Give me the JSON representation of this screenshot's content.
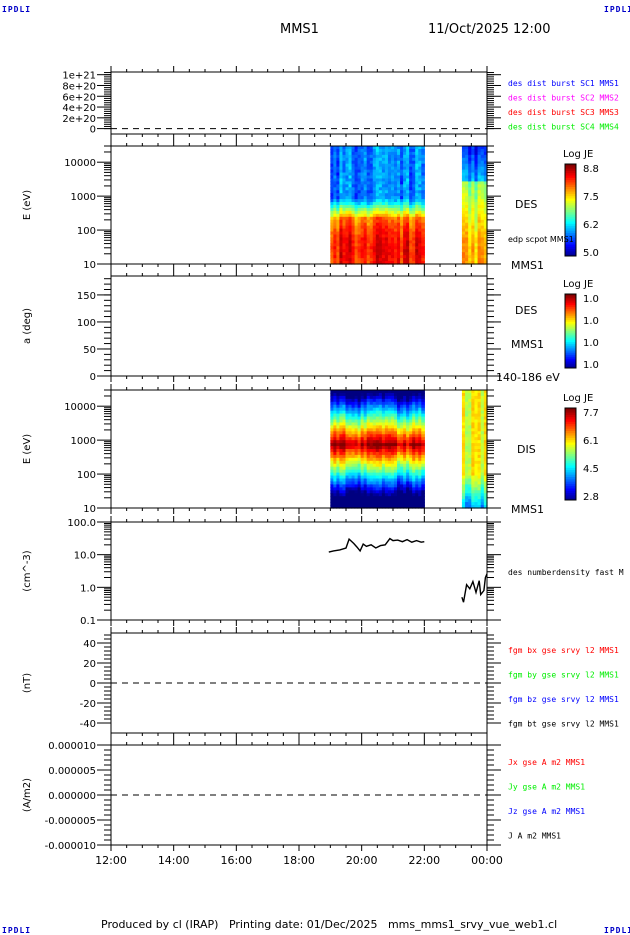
{
  "header": {
    "corner_label": "IPDLI",
    "spacecraft": "MMS1",
    "datetime": "11/Oct/2025 12:00"
  },
  "footer": {
    "text": "Produced by cl (IRAP)   Printing date: 01/Dec/2025   mms_mms1_srvy_vue_web1.cl"
  },
  "colors": {
    "blue": "#0000ff",
    "magenta": "#ff00ff",
    "red": "#ff0000",
    "green": "#00ee00",
    "black": "#000000"
  },
  "chart_data": [
    {
      "id": "panel-burst",
      "type": "line",
      "ylabel": "",
      "yscale": "linear",
      "ylim": [
        -1e+20,
        1.05e+21
      ],
      "yticks": [
        {
          "v": 1e+21,
          "label": "1e+21"
        },
        {
          "v": 8e+20,
          "label": "8e+20"
        },
        {
          "v": 6e+20,
          "label": "6e+20"
        },
        {
          "v": 4e+20,
          "label": "4e+20"
        },
        {
          "v": 2e+20,
          "label": "2e+20"
        },
        {
          "v": 0,
          "label": "0"
        }
      ],
      "zero_line": true,
      "legend": [
        {
          "label": "des dist burst SC1 MMS1",
          "color": "#0000ff"
        },
        {
          "label": "des dist burst SC2 MMS2",
          "color": "#ff00ff"
        },
        {
          "label": "des dist burst SC3 MMS3",
          "color": "#ff0000"
        },
        {
          "label": "des dist burst SC4 MMS4",
          "color": "#00ee00"
        }
      ],
      "series": []
    },
    {
      "id": "panel-des-energy",
      "type": "heatmap",
      "ylabel": "E (eV)",
      "yscale": "log",
      "ylim": [
        10,
        30000
      ],
      "yticks": [
        {
          "v": 10000,
          "label": "10000"
        },
        {
          "v": 1000,
          "label": "1000"
        },
        {
          "v": 100,
          "label": "100"
        },
        {
          "v": 10,
          "label": "10"
        }
      ],
      "side_labels": [
        "DES",
        "edp scpot MMS1",
        "MMS1"
      ],
      "colorbar": {
        "title": "Log JE",
        "ticks": [
          "8.8",
          "7.5",
          "6.2",
          "5.0"
        ],
        "range": [
          5.0,
          8.8
        ]
      },
      "data_intervals": [
        [
          19.0,
          22.0
        ],
        [
          23.2,
          24.0
        ]
      ],
      "profile": "des"
    },
    {
      "id": "panel-des-pitch",
      "type": "heatmap",
      "ylabel": "a (deg)",
      "yscale": "linear",
      "ylim": [
        0,
        185
      ],
      "yticks": [
        {
          "v": 150,
          "label": "150"
        },
        {
          "v": 100,
          "label": "100"
        },
        {
          "v": 50,
          "label": "50"
        },
        {
          "v": 0,
          "label": "0"
        }
      ],
      "side_labels": [
        "DES",
        "MMS1",
        "140-186 eV"
      ],
      "colorbar": {
        "title": "Log JE",
        "ticks": [
          "1.0",
          "1.0",
          "1.0",
          "1.0"
        ],
        "range": [
          1.0,
          1.0
        ]
      },
      "data_intervals": []
    },
    {
      "id": "panel-dis-energy",
      "type": "heatmap",
      "ylabel": "E (eV)",
      "yscale": "log",
      "ylim": [
        10,
        30000
      ],
      "yticks": [
        {
          "v": 10000,
          "label": "10000"
        },
        {
          "v": 1000,
          "label": "1000"
        },
        {
          "v": 100,
          "label": "100"
        },
        {
          "v": 10,
          "label": "10"
        }
      ],
      "side_labels": [
        "DIS",
        "MMS1"
      ],
      "colorbar": {
        "title": "Log JE",
        "ticks": [
          "7.7",
          "6.1",
          "4.5",
          "2.8"
        ],
        "range": [
          2.8,
          7.7
        ]
      },
      "data_intervals": [
        [
          19.0,
          22.0
        ],
        [
          23.2,
          24.0
        ]
      ],
      "profile": "dis"
    },
    {
      "id": "panel-density",
      "type": "line",
      "ylabel": "(cm^-3)",
      "yscale": "log",
      "ylim": [
        0.1,
        100
      ],
      "yticks": [
        {
          "v": 100,
          "label": "100.0"
        },
        {
          "v": 10,
          "label": "10.0"
        },
        {
          "v": 1,
          "label": "1.0"
        },
        {
          "v": 0.1,
          "label": "0.1"
        }
      ],
      "legend": [
        {
          "label": "des numberdensity fast M",
          "color": "#000000"
        }
      ],
      "series": [
        {
          "name": "des numberdensity fast",
          "color": "#000000",
          "x": [
            18.95,
            19.1,
            19.3,
            19.5,
            19.6,
            19.75,
            19.85,
            19.95,
            20.05,
            20.15,
            20.3,
            20.45,
            20.6,
            20.75,
            20.9,
            21.0,
            21.15,
            21.3,
            21.45,
            21.6,
            21.75,
            21.9,
            22.0
          ],
          "y": [
            12,
            13,
            14,
            16,
            30,
            22,
            17,
            13,
            21,
            18,
            20,
            16,
            19,
            20,
            31,
            27,
            28,
            25,
            29,
            24,
            27,
            24,
            25
          ]
        },
        {
          "name": "des numberdensity fast (late)",
          "color": "#000000",
          "x": [
            23.2,
            23.25,
            23.35,
            23.45,
            23.55,
            23.65,
            23.75,
            23.8,
            23.9,
            23.95,
            24.0
          ],
          "y": [
            0.5,
            0.35,
            1.2,
            0.9,
            1.5,
            0.7,
            1.6,
            0.6,
            0.8,
            2.0,
            2.6
          ]
        }
      ]
    },
    {
      "id": "panel-fgm",
      "type": "line",
      "ylabel": "(nT)",
      "yscale": "linear",
      "ylim": [
        -50,
        50
      ],
      "yticks": [
        {
          "v": 40,
          "label": "40"
        },
        {
          "v": 20,
          "label": "20"
        },
        {
          "v": 0,
          "label": "0"
        },
        {
          "v": -20,
          "label": "-20"
        },
        {
          "v": -40,
          "label": "-40"
        }
      ],
      "zero_line": true,
      "legend": [
        {
          "label": "fgm bx gse srvy l2 MMS1",
          "color": "#ff0000"
        },
        {
          "label": "fgm by gse srvy l2 MMS1",
          "color": "#00ee00"
        },
        {
          "label": "fgm bz gse srvy l2 MMS1",
          "color": "#0000ff"
        },
        {
          "label": "fgm bt gse srvy l2 MMS1",
          "color": "#000000"
        }
      ],
      "series": []
    },
    {
      "id": "panel-current",
      "type": "line",
      "ylabel": "(A/m2)",
      "yscale": "linear",
      "ylim": [
        -1e-05,
        1e-05
      ],
      "yticks": [
        {
          "v": 1e-05,
          "label": "0.000010"
        },
        {
          "v": 5e-06,
          "label": "0.000005"
        },
        {
          "v": 0,
          "label": "0.000000"
        },
        {
          "v": -5e-06,
          "label": "-0.000005"
        },
        {
          "v": -1e-05,
          "label": "-0.000010"
        }
      ],
      "zero_line": true,
      "legend": [
        {
          "label": "Jx gse A m2 MMS1",
          "color": "#ff0000"
        },
        {
          "label": "Jy gse A m2 MMS1",
          "color": "#00ee00"
        },
        {
          "label": "Jz gse A m2 MMS1",
          "color": "#0000ff"
        },
        {
          "label": "J A m2 MMS1",
          "color": "#000000"
        }
      ],
      "series": []
    }
  ],
  "xaxis": {
    "range_hours": [
      12,
      24
    ],
    "ticks": [
      {
        "v": 12,
        "label": "12:00"
      },
      {
        "v": 14,
        "label": "14:00"
      },
      {
        "v": 16,
        "label": "16:00"
      },
      {
        "v": 18,
        "label": "18:00"
      },
      {
        "v": 20,
        "label": "20:00"
      },
      {
        "v": 22,
        "label": "22:00"
      },
      {
        "v": 24,
        "label": "00:00"
      }
    ]
  }
}
